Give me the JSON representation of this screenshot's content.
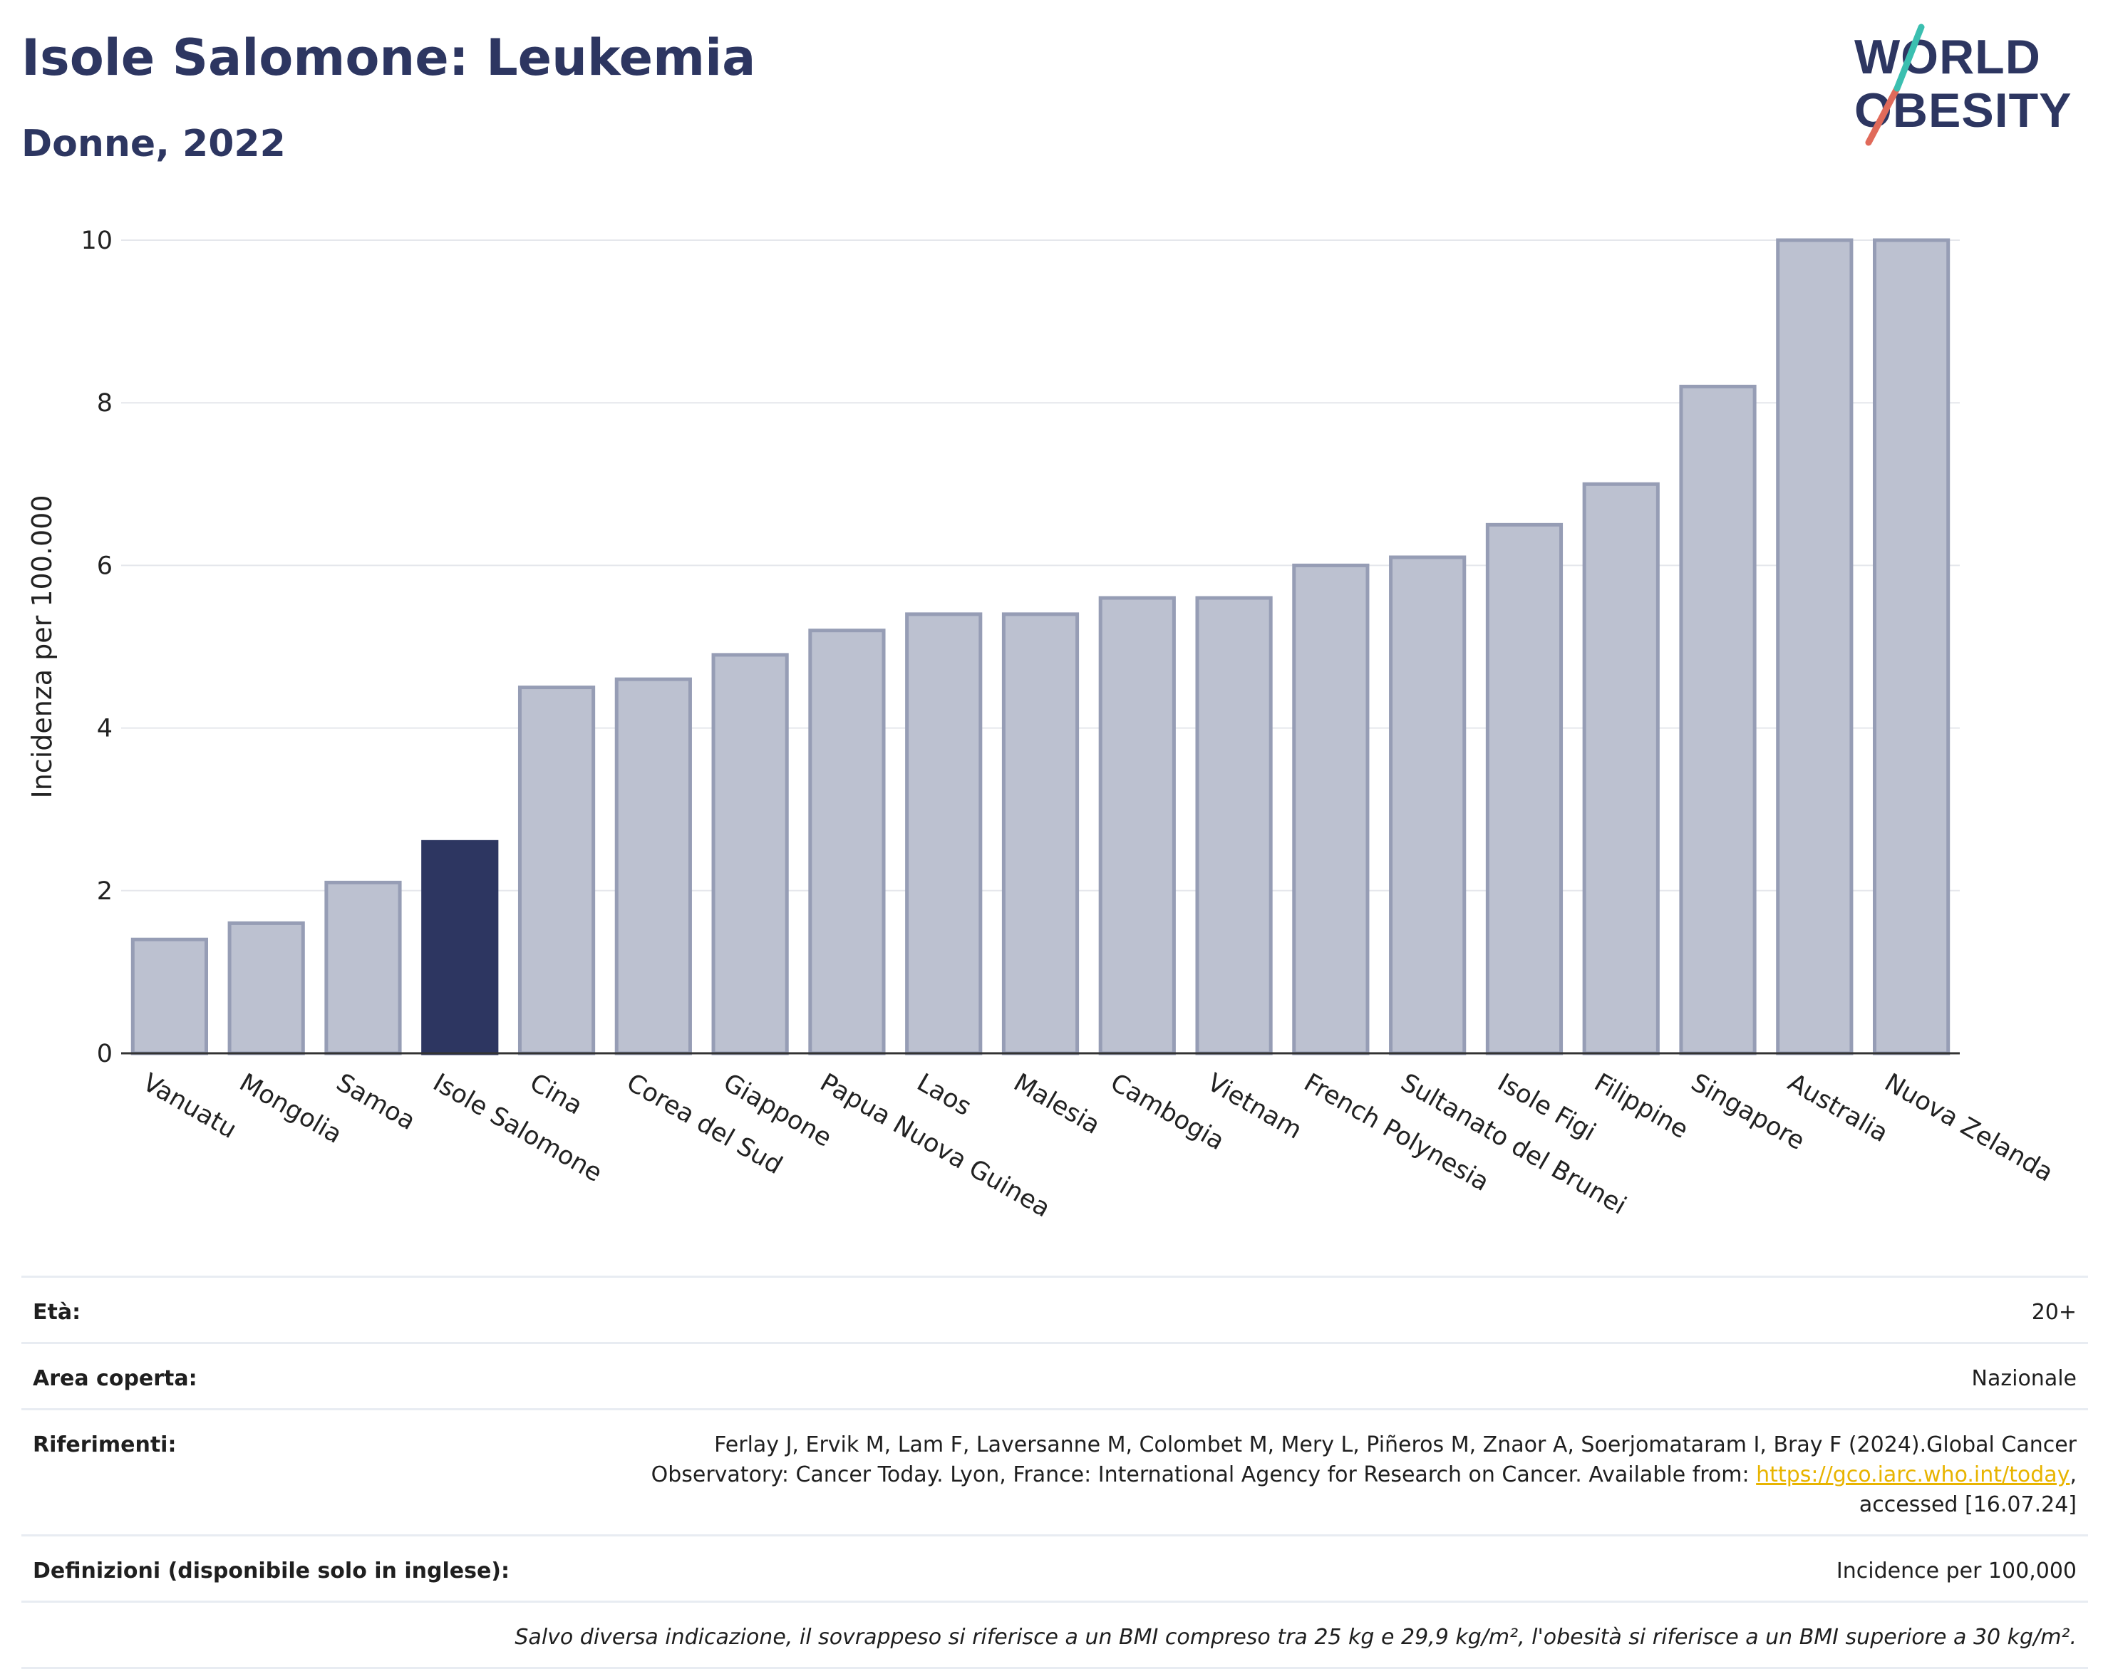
{
  "title": "Isole Salomone: Leukemia",
  "subtitle": "Donne, 2022",
  "logo": {
    "line1": "WORLD",
    "line2": "OBESITY",
    "colors": [
      "#2d3661",
      "#e06a5a",
      "#3bbfb0"
    ]
  },
  "colors": {
    "bar": "#bcc1d0",
    "bar_stroke": "#969db5",
    "highlight": "#2d3661",
    "grid": "#e5e7ec",
    "axis": "#333333"
  },
  "chart_data": {
    "type": "bar",
    "title": "",
    "xlabel": "",
    "ylabel": "Incidenza per 100.000",
    "ylim": [
      0,
      10
    ],
    "yticks": [
      0,
      2,
      4,
      6,
      8,
      10
    ],
    "categories": [
      "Vanuatu",
      "Mongolia",
      "Samoa",
      "Isole Salomone",
      "Cina",
      "Corea del Sud",
      "Giappone",
      "Papua Nuova Guinea",
      "Laos",
      "Malesia",
      "Cambogia",
      "Vietnam",
      "French Polynesia",
      "Sultanato del Brunei",
      "Isole Figi",
      "Filippine",
      "Singapore",
      "Australia",
      "Nuova Zelanda"
    ],
    "values": [
      1.4,
      1.6,
      2.1,
      2.6,
      4.5,
      4.6,
      4.9,
      5.2,
      5.4,
      5.4,
      5.6,
      5.6,
      6.0,
      6.1,
      6.5,
      7.0,
      8.2,
      10.0,
      10.0
    ],
    "highlight": "Isole Salomone",
    "grid": true
  },
  "meta": {
    "age_label": "Età:",
    "age_value": "20+",
    "area_label": "Area coperta:",
    "area_value": "Nazionale",
    "refs_label": "Riferimenti:",
    "refs_text1": "Ferlay J, Ervik M, Lam F, Laversanne M, Colombet M, Mery L, Piñeros M, Znaor A, Soerjomataram I, Bray F (2024).Global Cancer Observatory: Cancer Today. Lyon, France: International Agency for Research on Cancer. Available from: ",
    "refs_link": "https://gco.iarc.who.int/today",
    "refs_text2": ", accessed [16.07.24]",
    "defs_label": "Definizioni (disponibile solo in inglese):",
    "defs_value": "Incidence per 100,000",
    "note": "Salvo diversa indicazione, il sovrappeso si riferisce a un BMI compreso tra 25 kg e 29,9 kg/m², l'obesità si riferisce a un BMI superiore a 30 kg/m²."
  }
}
